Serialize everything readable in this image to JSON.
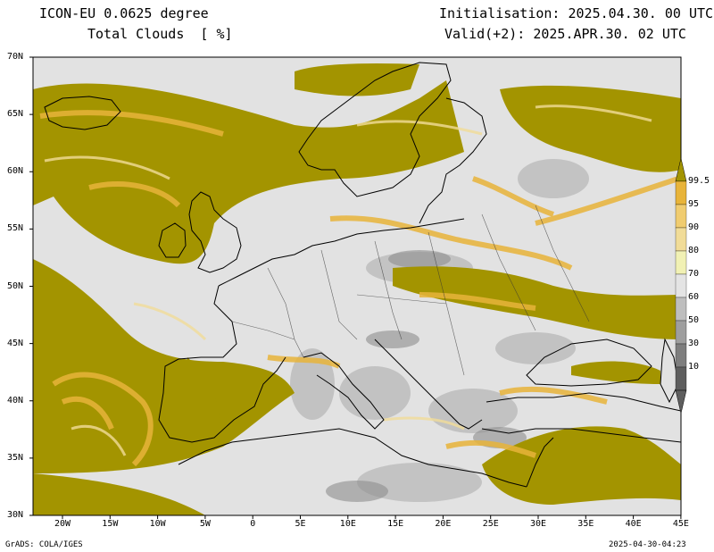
{
  "header": {
    "model": "ICON-EU 0.0625 degree",
    "variable": "Total Clouds  [ %]",
    "init": "Initialisation: 2025.04.30. 00 UTC",
    "valid": "Valid(+2): 2025.APR.30. 02 UTC"
  },
  "lat_labels": [
    "70N",
    "65N",
    "60N",
    "55N",
    "50N",
    "45N",
    "40N",
    "35N",
    "30N"
  ],
  "lon_labels": [
    "20W",
    "15W",
    "10W",
    "5W",
    "0",
    "5E",
    "10E",
    "15E",
    "20E",
    "25E",
    "30E",
    "35E",
    "40E",
    "45E"
  ],
  "colorbar": {
    "labels": [
      "99.5",
      "95",
      "90",
      "80",
      "70",
      "60",
      "50",
      "30",
      "10"
    ],
    "colors": [
      "#a39400",
      "#e8b43a",
      "#f0cc70",
      "#f1dc98",
      "#f1f1b4",
      "#e4e4e4",
      "#bebebe",
      "#9e9e9e",
      "#7e7e7e",
      "#5e5e5e"
    ]
  },
  "palette": {
    "ocean_overcast": "#a39400",
    "clear": "#e2e2e2",
    "coast": "#000000"
  },
  "footer": {
    "left": "GrADS: COLA/IGES",
    "right": "2025-04-30-04:23"
  }
}
